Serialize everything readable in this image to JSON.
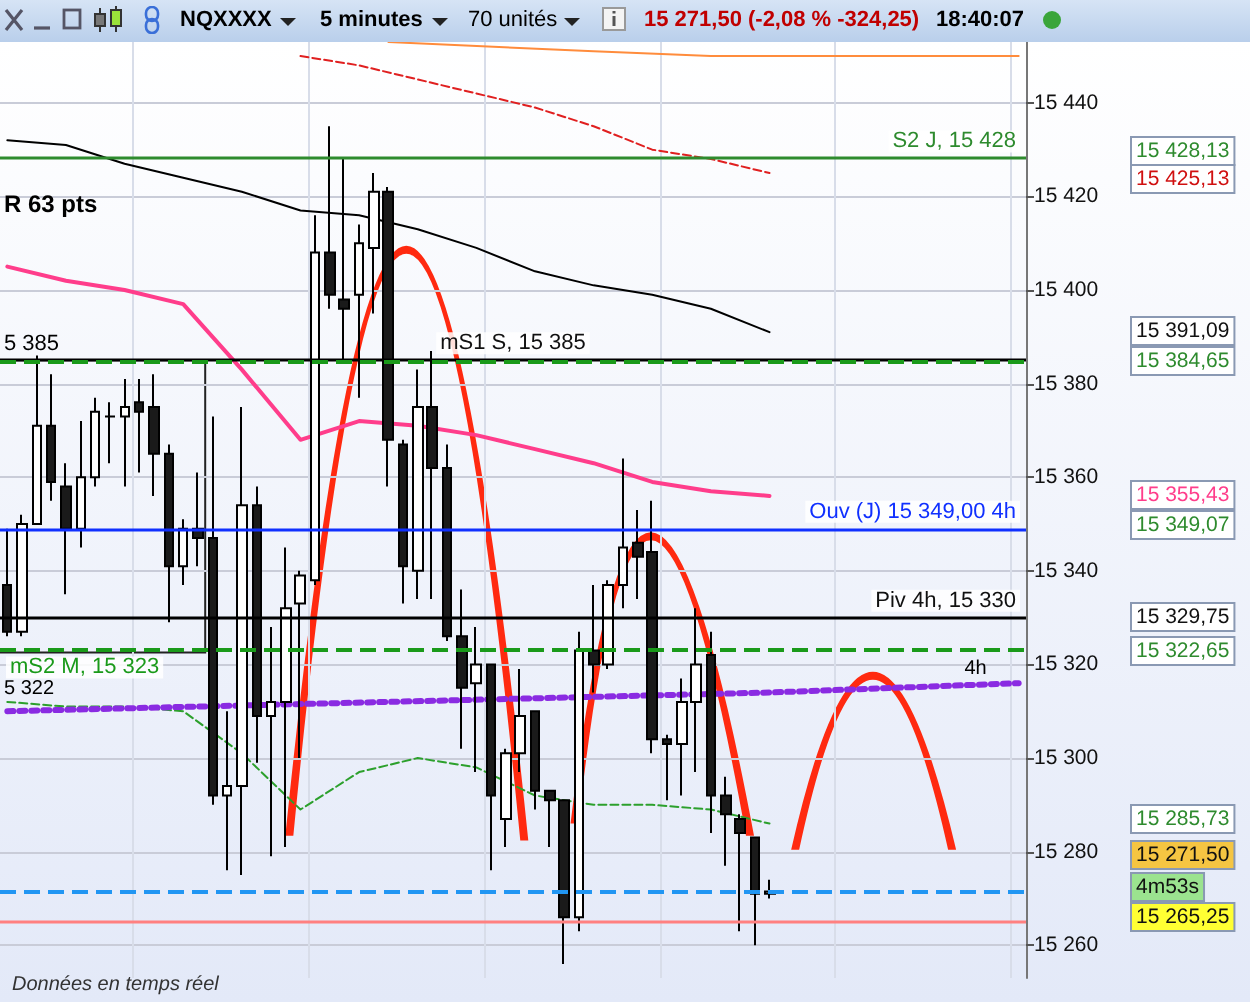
{
  "chart_data": {
    "type": "candlestick",
    "title": "NQXXXX",
    "subtitle": "5 minutes",
    "annotations": [
      "70 unités",
      "15 271,50 (-2,08 % -324,25)",
      "18:40:07",
      "R 63 pts",
      "5 385",
      "5 322",
      "4h",
      "Données en temps réel",
      "15 428,13",
      "15 425,13",
      "15 391,09",
      "15 384,65",
      "15 355,43",
      "15 349,07",
      "15 329,75",
      "15 322,65",
      "15 285,73",
      "15 271,50",
      "4m53s",
      "15 265,25"
    ],
    "categories": [
      null,
      null,
      null,
      null,
      null,
      null,
      null,
      null,
      null,
      null,
      null,
      null,
      null,
      null,
      null,
      null,
      null,
      null,
      null,
      null,
      null,
      null,
      null,
      null,
      null,
      null,
      null,
      null,
      null,
      null,
      null,
      null,
      null,
      null,
      null,
      null,
      null,
      null,
      null,
      null,
      null,
      null,
      null,
      null,
      null,
      null,
      null,
      null,
      null,
      null,
      null,
      null,
      null,
      null,
      null,
      null,
      null,
      null,
      null,
      null,
      null,
      null,
      null,
      null,
      null,
      null,
      null,
      null,
      null,
      null
    ],
    "ohlc": [
      [
        15337,
        15349,
        15326,
        15327
      ],
      [
        15327,
        15352,
        15326,
        15350
      ],
      [
        15350,
        15386,
        15350,
        15371
      ],
      [
        15371,
        15382,
        15355,
        15359
      ],
      [
        15358,
        15363,
        15335,
        15349
      ],
      [
        15349,
        15372,
        15345,
        15360
      ],
      [
        15360,
        15377,
        15358,
        15374
      ],
      [
        15373,
        15376,
        15363,
        15373
      ],
      [
        15373,
        15381,
        15358,
        15375
      ],
      [
        15376,
        15381,
        15361,
        15374
      ],
      [
        15375,
        15382,
        15356,
        15365
      ],
      [
        15365,
        15367,
        15329,
        15341
      ],
      [
        15341,
        15351,
        15337,
        15349
      ],
      [
        15349,
        15361,
        15341,
        15347
      ],
      [
        15347,
        15373,
        15290,
        15292
      ],
      [
        15292,
        15310,
        15276,
        15294
      ],
      [
        15294,
        15375,
        15275,
        15354
      ],
      [
        15354,
        15358,
        15299,
        15309
      ],
      [
        15309,
        15328,
        15279,
        15312
      ],
      [
        15312,
        15345,
        15281,
        15332
      ],
      [
        15333,
        15340,
        15300,
        15339
      ],
      [
        15338,
        15416,
        15337,
        15408
      ],
      [
        15408,
        15435,
        15396,
        15399
      ],
      [
        15398,
        15428,
        15385,
        15396
      ],
      [
        15399,
        15414,
        15377,
        15410
      ],
      [
        15409,
        15425,
        15395,
        15421
      ],
      [
        15421,
        15422,
        15358,
        15368
      ],
      [
        15367,
        15368,
        15333,
        15341
      ],
      [
        15340,
        15383,
        15334,
        15375
      ],
      [
        15375,
        15387,
        15334,
        15362
      ],
      [
        15362,
        15367,
        15325,
        15326
      ],
      [
        15326,
        15336,
        15302,
        15315
      ],
      [
        15316,
        15328,
        15297,
        15320
      ],
      [
        15320,
        15320,
        15276,
        15292
      ],
      [
        15287,
        15302,
        15281,
        15301
      ],
      [
        15301,
        15319,
        15297,
        15309
      ],
      [
        15310,
        15310,
        15289,
        15293
      ],
      [
        15293,
        15293,
        15281,
        15291
      ],
      [
        15291,
        15291,
        15256,
        15266
      ],
      [
        15266,
        15327,
        15263,
        15323
      ],
      [
        15323,
        15337,
        15314,
        15320
      ],
      [
        15320,
        15338,
        15319,
        15337
      ],
      [
        15337,
        15364,
        15332,
        15345
      ],
      [
        15346,
        15353,
        15334,
        15343
      ],
      [
        15344,
        15355,
        15301,
        15304
      ],
      [
        15304,
        15305,
        15291,
        15303
      ],
      [
        15303,
        15317,
        15292,
        15312
      ],
      [
        15312,
        15332,
        15297,
        15320
      ],
      [
        15322,
        15327,
        15284,
        15292
      ],
      [
        15292,
        15296,
        15277,
        15288
      ],
      [
        15287,
        15288,
        15263,
        15284
      ],
      [
        15283,
        15283,
        15260,
        15271
      ],
      [
        15271,
        15274,
        15270,
        15271.5
      ],
      null,
      null,
      null,
      null,
      null,
      null,
      null,
      null,
      null,
      null,
      null,
      null,
      null,
      null,
      null,
      null,
      null
    ],
    "series": [
      {
        "type": "line",
        "color": "#000000",
        "line_style": "solid",
        "values": [
          15432,
          null,
          null,
          null,
          15431,
          null,
          null,
          null,
          15427,
          null,
          null,
          null,
          15424,
          null,
          null,
          null,
          15421,
          null,
          null,
          null,
          15417,
          null,
          null,
          null,
          15416,
          null,
          null,
          null,
          15413,
          null,
          null,
          null,
          15409,
          null,
          null,
          null,
          15404,
          null,
          null,
          null,
          15401,
          null,
          null,
          null,
          15399,
          null,
          null,
          null,
          15396,
          null,
          null,
          null,
          15391,
          null,
          null,
          null,
          null,
          null,
          null,
          null,
          null,
          null,
          null,
          null,
          null,
          null,
          null,
          null,
          null,
          null
        ]
      },
      {
        "type": "line",
        "color": "#ff3d8b",
        "line_style": "solid",
        "values": [
          15405,
          null,
          null,
          null,
          15402,
          null,
          null,
          null,
          15400,
          null,
          null,
          null,
          15397,
          null,
          null,
          null,
          15383,
          null,
          null,
          null,
          15368,
          null,
          null,
          null,
          15372,
          null,
          null,
          null,
          15371,
          null,
          null,
          null,
          15369,
          null,
          null,
          null,
          15366,
          null,
          null,
          null,
          15363,
          null,
          null,
          null,
          15359,
          null,
          null,
          null,
          15357,
          null,
          null,
          null,
          15356,
          null,
          null,
          null,
          null,
          null,
          null,
          null,
          null,
          null,
          null,
          null,
          null,
          null,
          null,
          null,
          null,
          null
        ]
      },
      {
        "type": "line",
        "color": "#e02020",
        "line_style": "dashed",
        "values": [
          null,
          null,
          null,
          null,
          null,
          null,
          null,
          null,
          null,
          null,
          null,
          null,
          null,
          null,
          null,
          null,
          null,
          null,
          null,
          null,
          15450,
          null,
          null,
          null,
          15448,
          null,
          null,
          null,
          15445,
          null,
          null,
          null,
          15442,
          null,
          null,
          null,
          15439,
          null,
          null,
          null,
          15435,
          null,
          null,
          null,
          15430,
          null,
          null,
          null,
          15428,
          null,
          null,
          null,
          15425,
          null,
          null,
          null,
          null,
          null,
          null,
          null,
          null,
          null,
          null,
          null,
          null,
          null,
          null,
          null,
          null,
          null
        ]
      },
      {
        "type": "line",
        "color": "#ff8c3c",
        "line_style": "solid",
        "values": [
          null,
          null,
          null,
          null,
          null,
          null,
          null,
          null,
          null,
          null,
          null,
          null,
          null,
          null,
          null,
          null,
          null,
          null,
          null,
          null,
          null,
          null,
          null,
          null,
          null,
          null,
          15453,
          null,
          null,
          null,
          null,
          null,
          null,
          null,
          null,
          null,
          null,
          null,
          null,
          null,
          15451,
          null,
          null,
          null,
          null,
          null,
          null,
          null,
          15450,
          null,
          null,
          null,
          null,
          null,
          null,
          null,
          null,
          null,
          null,
          null,
          15450,
          null,
          null,
          null,
          null,
          null,
          null,
          null,
          null,
          15450
        ]
      },
      {
        "type": "line",
        "color": "#2ca02c",
        "line_style": "dashed",
        "values": [
          15312,
          null,
          null,
          null,
          15311,
          null,
          null,
          null,
          15311,
          null,
          null,
          null,
          15310,
          null,
          null,
          null,
          15301,
          null,
          null,
          null,
          15289,
          null,
          null,
          null,
          15297,
          null,
          null,
          null,
          15300,
          null,
          null,
          null,
          15298,
          null,
          null,
          null,
          15292,
          null,
          null,
          null,
          15290,
          null,
          null,
          null,
          15290,
          null,
          null,
          null,
          15289,
          null,
          null,
          null,
          15286,
          null,
          null,
          null,
          null,
          null,
          null,
          null,
          null,
          null,
          null,
          null,
          null,
          null,
          null,
          null,
          null,
          null
        ]
      },
      {
        "type": "line",
        "color": "#8a2be2",
        "line_style": "dotted",
        "values": [
          15310,
          null,
          null,
          null,
          null,
          null,
          null,
          null,
          null,
          null,
          null,
          null,
          null,
          null,
          null,
          null,
          null,
          null,
          null,
          null,
          null,
          null,
          null,
          null,
          null,
          null,
          null,
          null,
          null,
          null,
          null,
          null,
          null,
          null,
          null,
          null,
          null,
          null,
          null,
          null,
          null,
          null,
          null,
          null,
          null,
          null,
          null,
          null,
          null,
          null,
          null,
          null,
          15314,
          null,
          null,
          null,
          null,
          null,
          null,
          null,
          null,
          null,
          null,
          null,
          null,
          null,
          null,
          null,
          null,
          15316
        ]
      }
    ],
    "ylim": [
      15253,
      15453
    ],
    "yticks": [
      {
        "value": 15260,
        "label": "15 260"
      },
      {
        "value": 15280,
        "label": "15 280"
      },
      {
        "value": 15300,
        "label": "15 300"
      },
      {
        "value": 15320,
        "label": "15 320"
      },
      {
        "value": 15340,
        "label": "15 340"
      },
      {
        "value": 15360,
        "label": "15 360"
      },
      {
        "value": 15380,
        "label": "15 380"
      },
      {
        "value": 15400,
        "label": "15 400"
      },
      {
        "value": 15420,
        "label": "15 420"
      },
      {
        "value": 15440,
        "label": "15 440"
      }
    ],
    "ref_lines": [
      {
        "axis": "y",
        "value": 15428.13,
        "label": "S2 J, 15 428",
        "color": "#2e8b2e",
        "line_style": "solid"
      },
      {
        "axis": "y",
        "value": 15385,
        "label": "mS1 S, 15 385",
        "color": "#000000",
        "line_style": "solid"
      },
      {
        "axis": "y",
        "value": 15384.65,
        "color": "#1a9a1a",
        "line_style": "dashed"
      },
      {
        "axis": "y",
        "value": 15349,
        "label": "Ouv (J) 15 349,00 4h",
        "color": "#1030ff",
        "line_style": "solid"
      },
      {
        "axis": "y",
        "value": 15330,
        "label": "Piv 4h, 15 330",
        "color": "#000000",
        "line_style": "solid"
      },
      {
        "axis": "y",
        "value": 15323,
        "label": "mS2 M, 15 323",
        "color": "#1a9a1a",
        "line_style": "dashed"
      },
      {
        "axis": "y",
        "value": 15271.5,
        "color": "#2196f3",
        "line_style": "dashed"
      },
      {
        "axis": "y",
        "value": 15265.25,
        "color": "#ff8080",
        "line_style": "solid"
      }
    ],
    "grid": true,
    "tick_labels": "y"
  }
}
